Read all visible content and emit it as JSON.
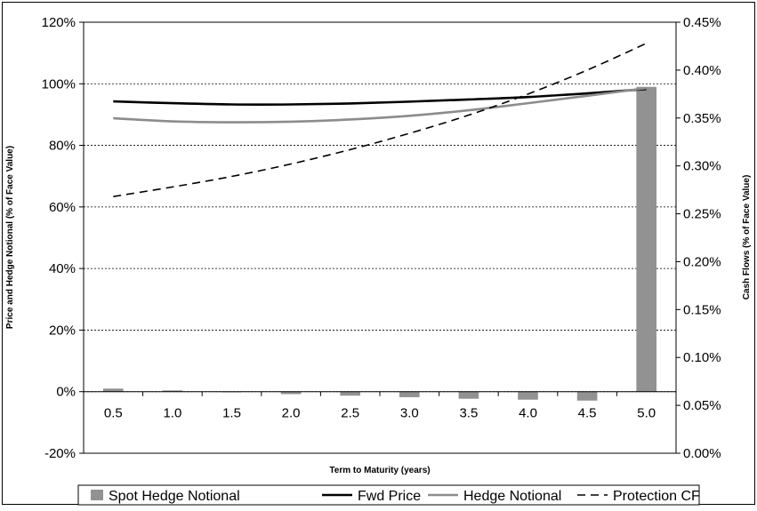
{
  "chart_data": {
    "type": "bar",
    "title": "",
    "xlabel": "Term to Maturity (years)",
    "ylabel": "Price and Hedge Notional (% of Face Value)",
    "y2label": "Cash Flows (% of Face Value)",
    "categories": [
      "0.5",
      "1.0",
      "1.5",
      "2.0",
      "2.5",
      "3.0",
      "3.5",
      "4.0",
      "4.5",
      "5.0"
    ],
    "ylim": [
      -20,
      120
    ],
    "y_ticks": [
      "-20%",
      "0%",
      "20%",
      "40%",
      "60%",
      "80%",
      "100%",
      "120%"
    ],
    "y_tick_values": [
      -20,
      0,
      20,
      40,
      60,
      80,
      100,
      120
    ],
    "y2lim": [
      0.0,
      0.45
    ],
    "y2_ticks": [
      "0.00%",
      "0.05%",
      "0.10%",
      "0.15%",
      "0.20%",
      "0.25%",
      "0.30%",
      "0.35%",
      "0.40%",
      "0.45%"
    ],
    "y2_tick_values": [
      0.0,
      0.05,
      0.1,
      0.15,
      0.2,
      0.25,
      0.3,
      0.35,
      0.4,
      0.45
    ],
    "grid": true,
    "legend_position": "bottom",
    "series": [
      {
        "name": "Spot Hedge Notional",
        "type": "bar",
        "axis": "left",
        "color": "#929292",
        "values": [
          1.0,
          0.4,
          -0.2,
          -0.8,
          -1.3,
          -1.8,
          -2.3,
          -2.6,
          -2.9,
          99.0
        ]
      },
      {
        "name": "Fwd Price",
        "type": "line",
        "axis": "left",
        "color": "#000000",
        "dash": "solid",
        "values": [
          94.3,
          93.7,
          93.3,
          93.3,
          93.6,
          94.2,
          94.9,
          95.7,
          96.9,
          98.3
        ]
      },
      {
        "name": "Hedge Notional",
        "type": "line",
        "axis": "left",
        "color": "#8c8c8c",
        "dash": "solid",
        "values": [
          88.8,
          87.8,
          87.5,
          87.7,
          88.4,
          89.6,
          91.4,
          93.7,
          96.1,
          98.6
        ]
      },
      {
        "name": "Protection CF",
        "type": "line",
        "axis": "right",
        "color": "#000000",
        "dash": "dashed",
        "values": [
          0.268,
          0.278,
          0.289,
          0.302,
          0.317,
          0.334,
          0.353,
          0.375,
          0.4,
          0.428
        ]
      }
    ]
  }
}
